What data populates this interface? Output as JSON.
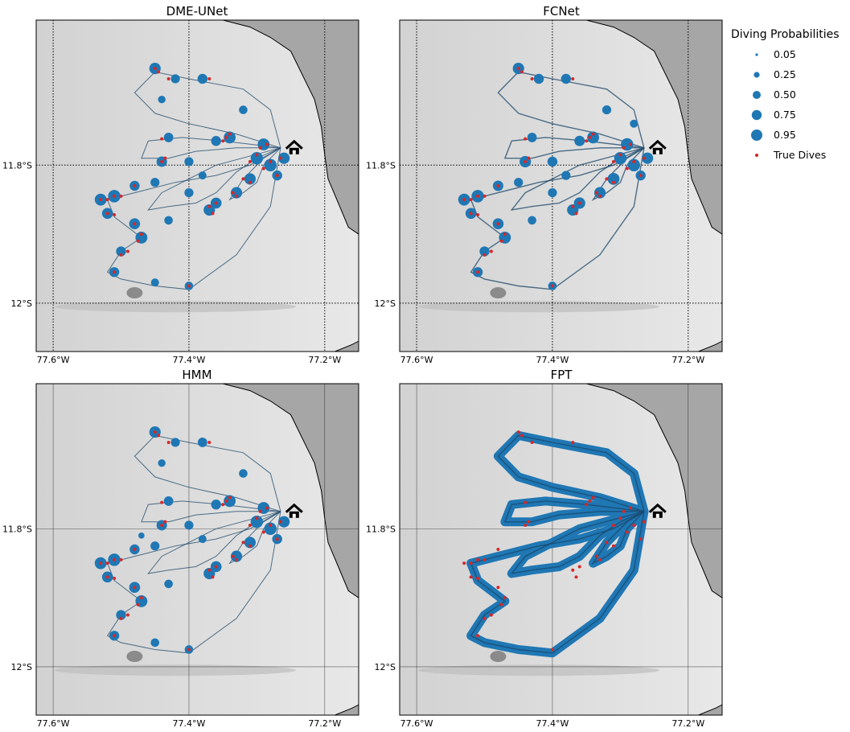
{
  "colors": {
    "track": "#1a4668",
    "prob": "#1f77b4",
    "dive": "#d62728",
    "land": "#a6a6a6",
    "ocean_light": "#e8e8e8",
    "ocean_mid": "#d2d2d2"
  },
  "legend": {
    "title": "Diving Probabilities",
    "sizes": [
      "0.05",
      "0.25",
      "0.50",
      "0.75",
      "0.95"
    ],
    "dives_label": "True Dives"
  },
  "chart_data": {
    "type": "map",
    "xlim": [
      -77.625,
      -77.15
    ],
    "ylim": [
      -12.07,
      -11.59
    ],
    "lon_ticks": [
      {
        "value": -77.6,
        "label": "77.6°W"
      },
      {
        "value": -77.4,
        "label": "77.4°W"
      },
      {
        "value": -77.2,
        "label": "77.2°W"
      }
    ],
    "lat_ticks": [
      {
        "value": -11.8,
        "label": "11.8°S"
      },
      {
        "value": -12.0,
        "label": "12°S"
      }
    ],
    "colony": {
      "lon": -77.245,
      "lat": -11.775,
      "icon": "house-icon"
    },
    "trips": [
      [
        [
          -77.265,
          -11.775
        ],
        [
          -77.33,
          -11.755
        ],
        [
          -77.4,
          -11.74
        ],
        [
          -77.45,
          -11.725
        ],
        [
          -77.48,
          -11.695
        ],
        [
          -77.45,
          -11.665
        ],
        [
          -77.4,
          -11.675
        ],
        [
          -77.32,
          -11.69
        ],
        [
          -77.28,
          -11.72
        ],
        [
          -77.265,
          -11.775
        ]
      ],
      [
        [
          -77.265,
          -11.775
        ],
        [
          -77.31,
          -11.8
        ],
        [
          -77.36,
          -11.815
        ],
        [
          -77.42,
          -11.825
        ],
        [
          -77.48,
          -11.84
        ],
        [
          -77.52,
          -11.85
        ],
        [
          -77.51,
          -11.875
        ],
        [
          -77.49,
          -11.89
        ],
        [
          -77.47,
          -11.905
        ],
        [
          -77.5,
          -11.925
        ],
        [
          -77.52,
          -11.955
        ],
        [
          -77.5,
          -11.965
        ],
        [
          -77.45,
          -11.975
        ],
        [
          -77.4,
          -11.98
        ],
        [
          -77.33,
          -11.93
        ],
        [
          -77.28,
          -11.86
        ],
        [
          -77.265,
          -11.775
        ]
      ],
      [
        [
          -77.265,
          -11.775
        ],
        [
          -77.3,
          -11.79
        ],
        [
          -77.33,
          -11.81
        ],
        [
          -77.36,
          -11.84
        ],
        [
          -77.39,
          -11.855
        ],
        [
          -77.43,
          -11.86
        ],
        [
          -77.46,
          -11.865
        ],
        [
          -77.44,
          -11.84
        ],
        [
          -77.4,
          -11.82
        ],
        [
          -77.36,
          -11.8
        ],
        [
          -77.265,
          -11.775
        ]
      ],
      [
        [
          -77.265,
          -11.775
        ],
        [
          -77.29,
          -11.8
        ],
        [
          -77.3,
          -11.825
        ],
        [
          -77.32,
          -11.84
        ],
        [
          -77.34,
          -11.85
        ],
        [
          -77.32,
          -11.82
        ],
        [
          -77.29,
          -11.79
        ],
        [
          -77.265,
          -11.775
        ]
      ],
      [
        [
          -77.265,
          -11.775
        ],
        [
          -77.33,
          -11.775
        ],
        [
          -77.39,
          -11.78
        ],
        [
          -77.43,
          -11.79
        ],
        [
          -77.47,
          -11.79
        ],
        [
          -77.46,
          -11.765
        ],
        [
          -77.41,
          -11.76
        ],
        [
          -77.35,
          -11.765
        ],
        [
          -77.265,
          -11.775
        ]
      ]
    ],
    "panels": [
      {
        "title": "DME-UNet",
        "grid_style": "dotted",
        "points": [
          {
            "lon": -77.45,
            "lat": -11.66,
            "p": 0.85
          },
          {
            "lon": -77.42,
            "lat": -11.675,
            "p": 0.6
          },
          {
            "lon": -77.38,
            "lat": -11.675,
            "p": 0.7
          },
          {
            "lon": -77.32,
            "lat": -11.72,
            "p": 0.55
          },
          {
            "lon": -77.43,
            "lat": -11.76,
            "p": 0.65
          },
          {
            "lon": -77.44,
            "lat": -11.795,
            "p": 0.75
          },
          {
            "lon": -77.4,
            "lat": -11.795,
            "p": 0.6
          },
          {
            "lon": -77.36,
            "lat": -11.765,
            "p": 0.7
          },
          {
            "lon": -77.34,
            "lat": -11.76,
            "p": 0.9
          },
          {
            "lon": -77.3,
            "lat": -11.79,
            "p": 0.95
          },
          {
            "lon": -77.28,
            "lat": -11.8,
            "p": 0.95
          },
          {
            "lon": -77.29,
            "lat": -11.77,
            "p": 0.9
          },
          {
            "lon": -77.31,
            "lat": -11.82,
            "p": 0.85
          },
          {
            "lon": -77.33,
            "lat": -11.84,
            "p": 0.85
          },
          {
            "lon": -77.36,
            "lat": -11.855,
            "p": 0.8
          },
          {
            "lon": -77.37,
            "lat": -11.865,
            "p": 0.85
          },
          {
            "lon": -77.4,
            "lat": -11.84,
            "p": 0.6
          },
          {
            "lon": -77.45,
            "lat": -11.825,
            "p": 0.6
          },
          {
            "lon": -77.48,
            "lat": -11.83,
            "p": 0.7
          },
          {
            "lon": -77.51,
            "lat": -11.845,
            "p": 0.95
          },
          {
            "lon": -77.53,
            "lat": -11.85,
            "p": 0.9
          },
          {
            "lon": -77.52,
            "lat": -11.87,
            "p": 0.8
          },
          {
            "lon": -77.48,
            "lat": -11.885,
            "p": 0.8
          },
          {
            "lon": -77.47,
            "lat": -11.905,
            "p": 0.9
          },
          {
            "lon": -77.43,
            "lat": -11.88,
            "p": 0.55
          },
          {
            "lon": -77.5,
            "lat": -11.925,
            "p": 0.7
          },
          {
            "lon": -77.51,
            "lat": -11.955,
            "p": 0.7
          },
          {
            "lon": -77.45,
            "lat": -11.97,
            "p": 0.5
          },
          {
            "lon": -77.4,
            "lat": -11.975,
            "p": 0.55
          },
          {
            "lon": -77.27,
            "lat": -11.815,
            "p": 0.7
          },
          {
            "lon": -77.26,
            "lat": -11.79,
            "p": 0.85
          },
          {
            "lon": -77.44,
            "lat": -11.705,
            "p": 0.45
          },
          {
            "lon": -77.38,
            "lat": -11.815,
            "p": 0.5
          }
        ]
      },
      {
        "title": "FCNet",
        "grid_style": "dotted",
        "points": [
          {
            "lon": -77.45,
            "lat": -11.66,
            "p": 0.85
          },
          {
            "lon": -77.42,
            "lat": -11.675,
            "p": 0.7
          },
          {
            "lon": -77.38,
            "lat": -11.675,
            "p": 0.7
          },
          {
            "lon": -77.32,
            "lat": -11.72,
            "p": 0.6
          },
          {
            "lon": -77.43,
            "lat": -11.76,
            "p": 0.65
          },
          {
            "lon": -77.44,
            "lat": -11.795,
            "p": 0.85
          },
          {
            "lon": -77.4,
            "lat": -11.795,
            "p": 0.7
          },
          {
            "lon": -77.36,
            "lat": -11.765,
            "p": 0.75
          },
          {
            "lon": -77.34,
            "lat": -11.76,
            "p": 0.9
          },
          {
            "lon": -77.3,
            "lat": -11.79,
            "p": 0.95
          },
          {
            "lon": -77.28,
            "lat": -11.8,
            "p": 0.95
          },
          {
            "lon": -77.29,
            "lat": -11.77,
            "p": 0.95
          },
          {
            "lon": -77.31,
            "lat": -11.82,
            "p": 0.9
          },
          {
            "lon": -77.33,
            "lat": -11.84,
            "p": 0.85
          },
          {
            "lon": -77.36,
            "lat": -11.855,
            "p": 0.85
          },
          {
            "lon": -77.37,
            "lat": -11.865,
            "p": 0.85
          },
          {
            "lon": -77.4,
            "lat": -11.84,
            "p": 0.6
          },
          {
            "lon": -77.45,
            "lat": -11.825,
            "p": 0.6
          },
          {
            "lon": -77.48,
            "lat": -11.83,
            "p": 0.75
          },
          {
            "lon": -77.51,
            "lat": -11.845,
            "p": 0.95
          },
          {
            "lon": -77.53,
            "lat": -11.85,
            "p": 0.9
          },
          {
            "lon": -77.52,
            "lat": -11.87,
            "p": 0.8
          },
          {
            "lon": -77.48,
            "lat": -11.885,
            "p": 0.8
          },
          {
            "lon": -77.47,
            "lat": -11.905,
            "p": 0.9
          },
          {
            "lon": -77.43,
            "lat": -11.88,
            "p": 0.55
          },
          {
            "lon": -77.5,
            "lat": -11.925,
            "p": 0.7
          },
          {
            "lon": -77.51,
            "lat": -11.955,
            "p": 0.7
          },
          {
            "lon": -77.4,
            "lat": -11.975,
            "p": 0.55
          },
          {
            "lon": -77.27,
            "lat": -11.815,
            "p": 0.7
          },
          {
            "lon": -77.26,
            "lat": -11.79,
            "p": 0.85
          },
          {
            "lon": -77.38,
            "lat": -11.815,
            "p": 0.6
          },
          {
            "lon": -77.28,
            "lat": -11.74,
            "p": 0.5
          }
        ]
      },
      {
        "title": "HMM",
        "grid_style": "solid",
        "points": [
          {
            "lon": -77.45,
            "lat": -11.66,
            "p": 0.85
          },
          {
            "lon": -77.42,
            "lat": -11.675,
            "p": 0.6
          },
          {
            "lon": -77.38,
            "lat": -11.675,
            "p": 0.65
          },
          {
            "lon": -77.32,
            "lat": -11.72,
            "p": 0.55
          },
          {
            "lon": -77.43,
            "lat": -11.76,
            "p": 0.65
          },
          {
            "lon": -77.44,
            "lat": -11.795,
            "p": 0.75
          },
          {
            "lon": -77.4,
            "lat": -11.795,
            "p": 0.6
          },
          {
            "lon": -77.36,
            "lat": -11.765,
            "p": 0.7
          },
          {
            "lon": -77.34,
            "lat": -11.76,
            "p": 0.9
          },
          {
            "lon": -77.3,
            "lat": -11.79,
            "p": 0.95
          },
          {
            "lon": -77.28,
            "lat": -11.8,
            "p": 0.95
          },
          {
            "lon": -77.29,
            "lat": -11.77,
            "p": 0.9
          },
          {
            "lon": -77.31,
            "lat": -11.82,
            "p": 0.85
          },
          {
            "lon": -77.33,
            "lat": -11.84,
            "p": 0.85
          },
          {
            "lon": -77.36,
            "lat": -11.855,
            "p": 0.8
          },
          {
            "lon": -77.37,
            "lat": -11.865,
            "p": 0.85
          },
          {
            "lon": -77.45,
            "lat": -11.825,
            "p": 0.6
          },
          {
            "lon": -77.48,
            "lat": -11.83,
            "p": 0.7
          },
          {
            "lon": -77.51,
            "lat": -11.845,
            "p": 0.95
          },
          {
            "lon": -77.53,
            "lat": -11.85,
            "p": 0.9
          },
          {
            "lon": -77.52,
            "lat": -11.87,
            "p": 0.8
          },
          {
            "lon": -77.48,
            "lat": -11.885,
            "p": 0.8
          },
          {
            "lon": -77.47,
            "lat": -11.905,
            "p": 0.9
          },
          {
            "lon": -77.43,
            "lat": -11.88,
            "p": 0.55
          },
          {
            "lon": -77.5,
            "lat": -11.925,
            "p": 0.7
          },
          {
            "lon": -77.51,
            "lat": -11.955,
            "p": 0.7
          },
          {
            "lon": -77.45,
            "lat": -11.965,
            "p": 0.55
          },
          {
            "lon": -77.4,
            "lat": -11.975,
            "p": 0.55
          },
          {
            "lon": -77.27,
            "lat": -11.815,
            "p": 0.7
          },
          {
            "lon": -77.26,
            "lat": -11.79,
            "p": 0.85
          },
          {
            "lon": -77.44,
            "lat": -11.705,
            "p": 0.45
          },
          {
            "lon": -77.38,
            "lat": -11.815,
            "p": 0.5
          },
          {
            "lon": -77.47,
            "lat": -11.81,
            "p": 0.3
          }
        ]
      },
      {
        "title": "FPT",
        "grid_style": "solid",
        "points": []
      }
    ],
    "true_dives": [
      {
        "lon": -77.45,
        "lat": -11.66
      },
      {
        "lon": -77.445,
        "lat": -11.665
      },
      {
        "lon": -77.43,
        "lat": -11.675
      },
      {
        "lon": -77.37,
        "lat": -11.675
      },
      {
        "lon": -77.44,
        "lat": -11.762
      },
      {
        "lon": -77.44,
        "lat": -11.795
      },
      {
        "lon": -77.435,
        "lat": -11.79
      },
      {
        "lon": -77.35,
        "lat": -11.765
      },
      {
        "lon": -77.345,
        "lat": -11.76
      },
      {
        "lon": -77.34,
        "lat": -11.755
      },
      {
        "lon": -77.3,
        "lat": -11.785
      },
      {
        "lon": -77.31,
        "lat": -11.795
      },
      {
        "lon": -77.29,
        "lat": -11.805
      },
      {
        "lon": -77.28,
        "lat": -11.795
      },
      {
        "lon": -77.295,
        "lat": -11.775
      },
      {
        "lon": -77.285,
        "lat": -11.77
      },
      {
        "lon": -77.32,
        "lat": -11.82
      },
      {
        "lon": -77.31,
        "lat": -11.825
      },
      {
        "lon": -77.335,
        "lat": -11.84
      },
      {
        "lon": -77.33,
        "lat": -11.845
      },
      {
        "lon": -77.36,
        "lat": -11.855
      },
      {
        "lon": -77.37,
        "lat": -11.86
      },
      {
        "lon": -77.365,
        "lat": -11.87
      },
      {
        "lon": -77.51,
        "lat": -11.845
      },
      {
        "lon": -77.52,
        "lat": -11.85
      },
      {
        "lon": -77.53,
        "lat": -11.85
      },
      {
        "lon": -77.5,
        "lat": -11.845
      },
      {
        "lon": -77.52,
        "lat": -11.87
      },
      {
        "lon": -77.51,
        "lat": -11.872
      },
      {
        "lon": -77.48,
        "lat": -11.885
      },
      {
        "lon": -77.47,
        "lat": -11.9
      },
      {
        "lon": -77.475,
        "lat": -11.91
      },
      {
        "lon": -77.49,
        "lat": -11.925
      },
      {
        "lon": -77.5,
        "lat": -11.93
      },
      {
        "lon": -77.51,
        "lat": -11.955
      },
      {
        "lon": -77.4,
        "lat": -11.975
      },
      {
        "lon": -77.27,
        "lat": -11.815
      },
      {
        "lon": -77.265,
        "lat": -11.79
      },
      {
        "lon": -77.48,
        "lat": -11.83
      }
    ]
  }
}
